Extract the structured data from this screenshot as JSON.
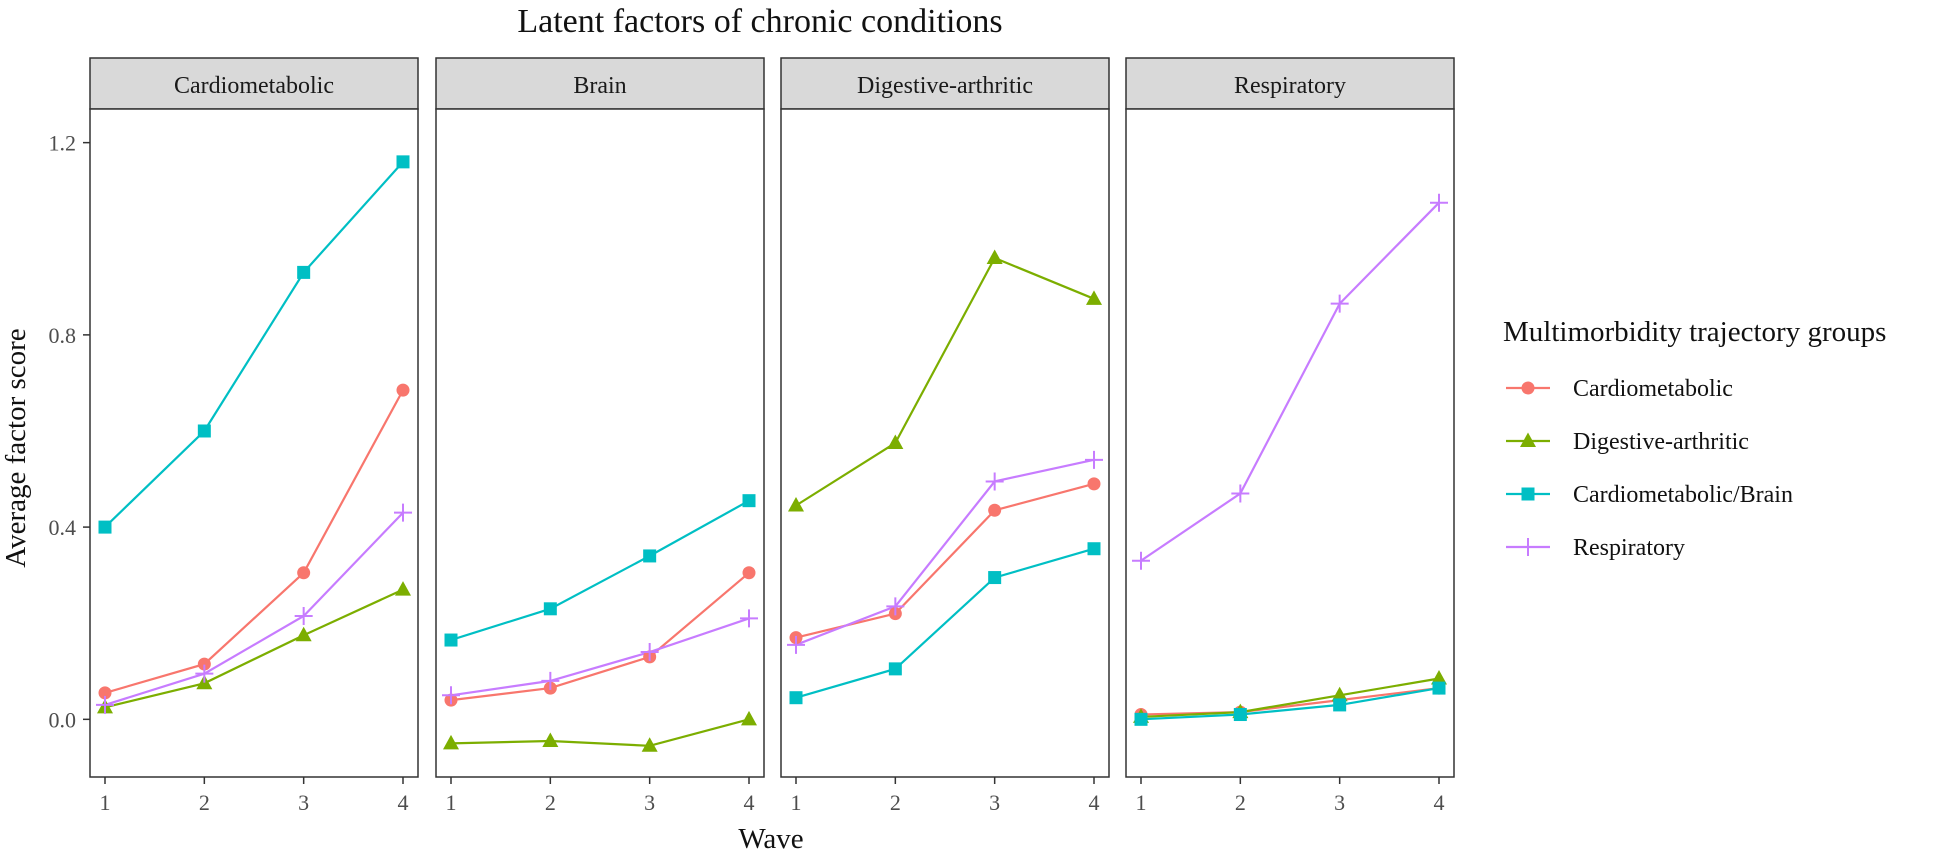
{
  "chart_data": {
    "type": "line",
    "title": "Latent factors of chronic conditions",
    "xlabel": "Wave",
    "ylabel": "Average factor score",
    "x": [
      1,
      2,
      3,
      4
    ],
    "x_ticks": [
      "1",
      "2",
      "3",
      "4"
    ],
    "ylim": [
      -0.12,
      1.27
    ],
    "y_ticks": [
      "0.0",
      "0.4",
      "0.8",
      "1.2"
    ],
    "y_tick_values": [
      0.0,
      0.4,
      0.8,
      1.2
    ],
    "grid": false,
    "legend": {
      "title": "Multimorbidity trajectory groups",
      "position": "right",
      "entries": [
        "Cardiometabolic",
        "Digestive-arthritic",
        "Cardiometabolic/Brain",
        "Respiratory"
      ]
    },
    "series_styles": [
      {
        "name": "Cardiometabolic",
        "color": "#F8766D",
        "marker": "circle"
      },
      {
        "name": "Digestive-arthritic",
        "color": "#7CAE00",
        "marker": "triangle"
      },
      {
        "name": "Cardiometabolic/Brain",
        "color": "#00BFC4",
        "marker": "square"
      },
      {
        "name": "Respiratory",
        "color": "#C77CFF",
        "marker": "plus"
      }
    ],
    "panels": [
      {
        "strip": "Cardiometabolic",
        "series": [
          {
            "name": "Cardiometabolic",
            "values": [
              0.055,
              0.115,
              0.305,
              0.685
            ]
          },
          {
            "name": "Digestive-arthritic",
            "values": [
              0.025,
              0.075,
              0.175,
              0.27
            ]
          },
          {
            "name": "Cardiometabolic/Brain",
            "values": [
              0.4,
              0.6,
              0.93,
              1.16
            ]
          },
          {
            "name": "Respiratory",
            "values": [
              0.03,
              0.095,
              0.215,
              0.43
            ]
          }
        ]
      },
      {
        "strip": "Brain",
        "series": [
          {
            "name": "Cardiometabolic",
            "values": [
              0.04,
              0.065,
              0.13,
              0.305
            ]
          },
          {
            "name": "Digestive-arthritic",
            "values": [
              -0.05,
              -0.045,
              -0.055,
              0.0
            ]
          },
          {
            "name": "Cardiometabolic/Brain",
            "values": [
              0.165,
              0.23,
              0.34,
              0.455
            ]
          },
          {
            "name": "Respiratory",
            "values": [
              0.05,
              0.08,
              0.14,
              0.21
            ]
          }
        ]
      },
      {
        "strip": "Digestive-arthritic",
        "series": [
          {
            "name": "Cardiometabolic",
            "values": [
              0.17,
              0.22,
              0.435,
              0.49
            ]
          },
          {
            "name": "Digestive-arthritic",
            "values": [
              0.445,
              0.575,
              0.96,
              0.875
            ]
          },
          {
            "name": "Cardiometabolic/Brain",
            "values": [
              0.045,
              0.105,
              0.295,
              0.355
            ]
          },
          {
            "name": "Respiratory",
            "values": [
              0.155,
              0.235,
              0.495,
              0.54
            ]
          }
        ]
      },
      {
        "strip": "Respiratory",
        "series": [
          {
            "name": "Cardiometabolic",
            "values": [
              0.01,
              0.015,
              0.04,
              0.065
            ]
          },
          {
            "name": "Digestive-arthritic",
            "values": [
              0.005,
              0.015,
              0.05,
              0.085
            ]
          },
          {
            "name": "Cardiometabolic/Brain",
            "values": [
              0.0,
              0.01,
              0.03,
              0.065
            ]
          },
          {
            "name": "Respiratory",
            "values": [
              0.33,
              0.47,
              0.865,
              1.075
            ]
          }
        ]
      }
    ]
  }
}
